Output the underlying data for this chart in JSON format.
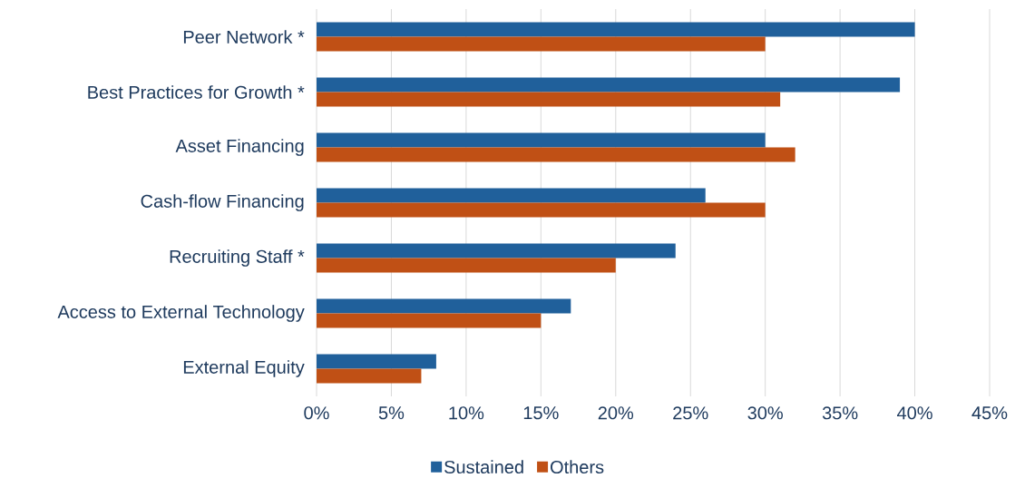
{
  "chart_data": {
    "type": "bar",
    "orientation": "horizontal",
    "categories": [
      "Peer Network *",
      "Best Practices for Growth *",
      "Asset Financing",
      "Cash-flow Financing",
      "Recruiting Staff *",
      "Access to External Technology",
      "External Equity"
    ],
    "series": [
      {
        "name": "Sustained",
        "color": "#20609b",
        "values": [
          40,
          39,
          30,
          26,
          24,
          17,
          8
        ]
      },
      {
        "name": "Others",
        "color": "#c05015",
        "values": [
          30,
          31,
          32,
          30,
          20,
          15,
          7
        ]
      }
    ],
    "xlim": [
      0,
      45
    ],
    "xticks": [
      {
        "value": 0,
        "label": "0%"
      },
      {
        "value": 5,
        "label": "5%"
      },
      {
        "value": 10,
        "label": "10%"
      },
      {
        "value": 15,
        "label": "15%"
      },
      {
        "value": 20,
        "label": "20%"
      },
      {
        "value": 25,
        "label": "25%"
      },
      {
        "value": 30,
        "label": "30%"
      },
      {
        "value": 35,
        "label": "35%"
      },
      {
        "value": 40,
        "label": "40%"
      },
      {
        "value": 45,
        "label": "45%"
      }
    ],
    "grid": "x",
    "legend": "bottom"
  }
}
